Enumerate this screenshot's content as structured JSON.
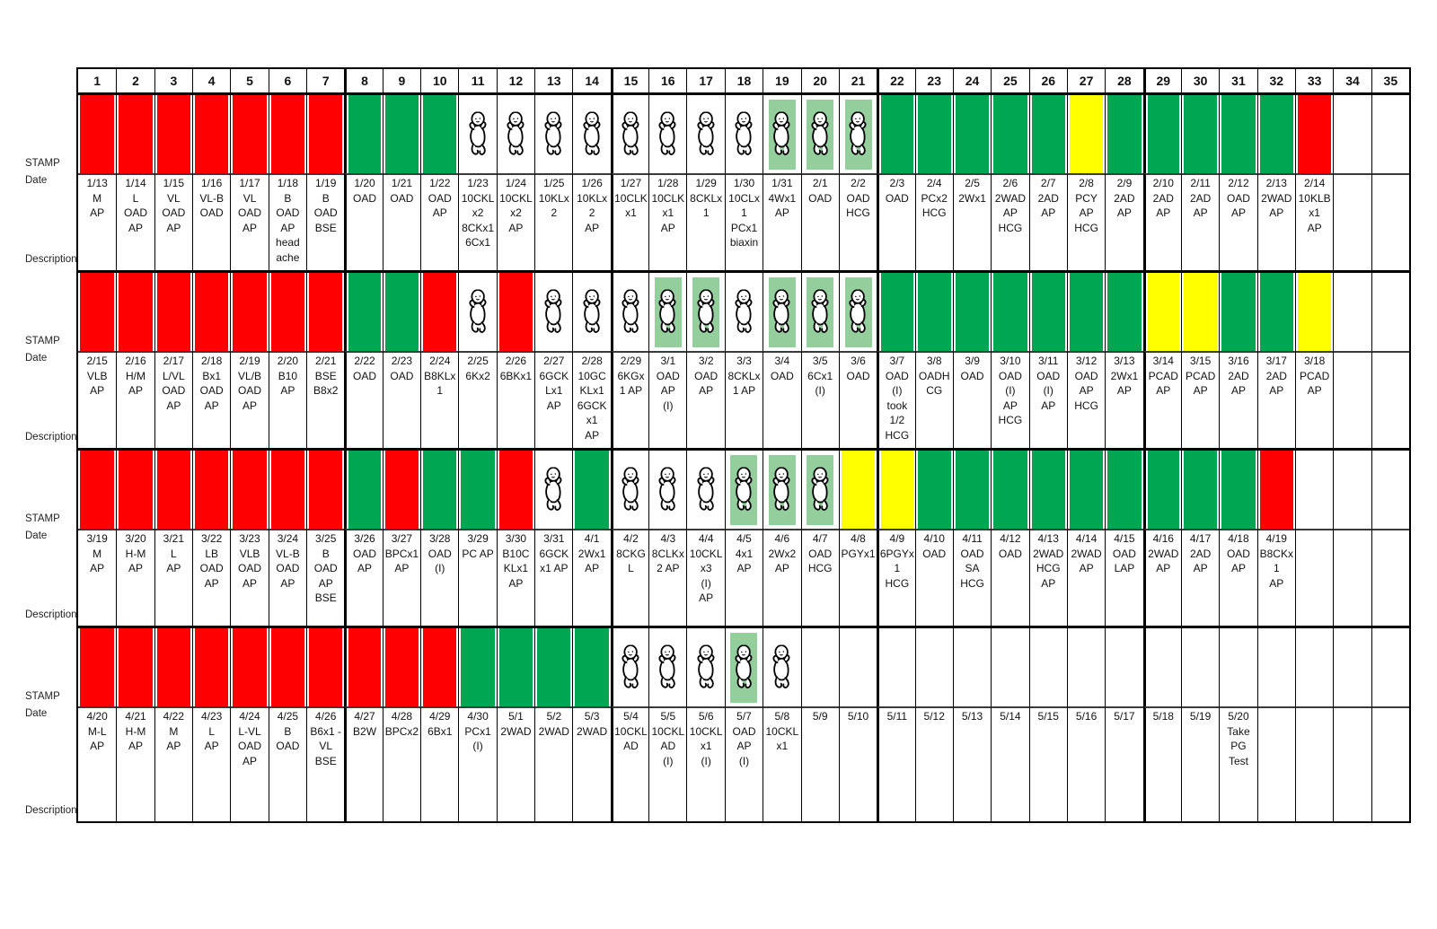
{
  "left_labels": {
    "stamp": "STAMP",
    "date": "Date",
    "description": "Description"
  },
  "columns": [
    "1",
    "2",
    "3",
    "4",
    "5",
    "6",
    "7",
    "8",
    "9",
    "10",
    "11",
    "12",
    "13",
    "14",
    "15",
    "16",
    "17",
    "18",
    "19",
    "20",
    "21",
    "22",
    "23",
    "24",
    "25",
    "26",
    "27",
    "28",
    "29",
    "30",
    "31",
    "32",
    "33",
    "34",
    "35"
  ],
  "colors": {
    "red": "#FF0000",
    "green": "#00A651",
    "yellow": "#FFFF00",
    "baby_highlight": "#94CE9D",
    "grid": "#000000"
  },
  "icons": {
    "baby": "baby-icon"
  },
  "rows": [
    {
      "name": "cycle-1",
      "cells": [
        {
          "s": "red",
          "text": "1/13\nM\nAP"
        },
        {
          "s": "red",
          "text": "1/14\nL\nOAD\nAP"
        },
        {
          "s": "red",
          "text": "1/15\nVL\nOAD\nAP"
        },
        {
          "s": "red",
          "text": "1/16\nVL-B\nOAD"
        },
        {
          "s": "red",
          "text": "1/17\nVL\nOAD\nAP"
        },
        {
          "s": "red",
          "text": "1/18\nB\nOAD\nAP\nhead\nache"
        },
        {
          "s": "red",
          "text": "1/19\nB\nOAD\nBSE"
        },
        {
          "s": "green",
          "text": "1/20\nOAD"
        },
        {
          "s": "green",
          "text": "1/21\nOAD"
        },
        {
          "s": "green",
          "text": "1/22\nOAD\nAP"
        },
        {
          "s": "baby",
          "text": "1/23\n10CKL\nx2\n8CKx1\n6Cx1"
        },
        {
          "s": "baby",
          "text": "1/24\n10CKL\nx2\nAP"
        },
        {
          "s": "baby",
          "text": "1/25\n10KLx\n2"
        },
        {
          "s": "baby",
          "text": "1/26\n10KLx\n2\nAP"
        },
        {
          "s": "baby",
          "text": "1/27\n10CLK\nx1"
        },
        {
          "s": "baby",
          "text": "1/28\n10CLK\nx1\nAP"
        },
        {
          "s": "baby",
          "text": "1/29\n8CKLx\n1"
        },
        {
          "s": "baby",
          "text": "1/30\n10CLx\n1\nPCx1\nbiaxin"
        },
        {
          "s": "baby-green",
          "text": "1/31\n4Wx1\nAP"
        },
        {
          "s": "baby-green",
          "text": "2/1\nOAD"
        },
        {
          "s": "baby-green",
          "text": "2/2\nOAD\nHCG"
        },
        {
          "s": "green",
          "text": "2/3\nOAD"
        },
        {
          "s": "green",
          "text": "2/4\nPCx2\nHCG"
        },
        {
          "s": "green",
          "text": "2/5\n2Wx1"
        },
        {
          "s": "green",
          "text": "2/6\n2WAD\nAP\nHCG"
        },
        {
          "s": "green",
          "text": "2/7\n2AD\nAP"
        },
        {
          "s": "yellow",
          "text": "2/8\nPCY\nAP\nHCG"
        },
        {
          "s": "green",
          "text": "2/9\n2AD\nAP"
        },
        {
          "s": "green",
          "text": "2/10\n2AD\nAP"
        },
        {
          "s": "green",
          "text": "2/11\n2AD\nAP"
        },
        {
          "s": "green",
          "text": "2/12\nOAD\nAP"
        },
        {
          "s": "green",
          "text": "2/13\n2WAD\nAP"
        },
        {
          "s": "red",
          "text": "2/14\n10KLB\nx1\nAP"
        },
        {
          "s": "none",
          "text": ""
        },
        {
          "s": "none",
          "text": ""
        }
      ]
    },
    {
      "name": "cycle-2",
      "cells": [
        {
          "s": "red",
          "text": "2/15\nVLB\nAP"
        },
        {
          "s": "red",
          "text": "2/16\nH/M\nAP"
        },
        {
          "s": "red",
          "text": "2/17\nL/VL\nOAD\nAP"
        },
        {
          "s": "red",
          "text": "2/18\nBx1\nOAD\nAP"
        },
        {
          "s": "red",
          "text": "2/19\nVL/B\nOAD\nAP"
        },
        {
          "s": "red",
          "text": "2/20\nB10\nAP"
        },
        {
          "s": "red",
          "text": "2/21\nBSE\nB8x2"
        },
        {
          "s": "green",
          "text": "2/22\nOAD"
        },
        {
          "s": "green",
          "text": "2/23\nOAD"
        },
        {
          "s": "red",
          "text": "2/24\nB8KLx\n1"
        },
        {
          "s": "baby",
          "text": "2/25\n6Kx2"
        },
        {
          "s": "red",
          "text": "2/26\n6BKx1"
        },
        {
          "s": "baby",
          "text": "2/27\n6GCK\nLx1\nAP"
        },
        {
          "s": "baby",
          "text": "2/28\n10GC\nKLx1\n6GCK\nx1\nAP"
        },
        {
          "s": "baby",
          "text": "2/29\n6KGx\n1 AP"
        },
        {
          "s": "baby-green",
          "text": "3/1\nOAD\nAP\n(I)"
        },
        {
          "s": "baby-green",
          "text": "3/2\nOAD\nAP"
        },
        {
          "s": "baby",
          "text": "3/3\n8CKLx\n1 AP"
        },
        {
          "s": "baby-green",
          "text": "3/4\nOAD"
        },
        {
          "s": "baby-green",
          "text": "3/5\n6Cx1\n(I)"
        },
        {
          "s": "baby-green",
          "text": "3/6\nOAD"
        },
        {
          "s": "green",
          "text": "3/7\nOAD\n(I)\ntook\n1/2\nHCG"
        },
        {
          "s": "green",
          "text": "3/8\nOADH\nCG"
        },
        {
          "s": "green",
          "text": "3/9\nOAD"
        },
        {
          "s": "green",
          "text": "3/10\nOAD\n(I)\nAP\nHCG"
        },
        {
          "s": "green",
          "text": "3/11\nOAD\n(I)\nAP"
        },
        {
          "s": "green",
          "text": "3/12\nOAD\nAP\nHCG"
        },
        {
          "s": "green",
          "text": "3/13\n2Wx1\nAP"
        },
        {
          "s": "yellow",
          "text": "3/14\nPCAD\nAP"
        },
        {
          "s": "yellow",
          "text": "3/15\nPCAD\nAP"
        },
        {
          "s": "green",
          "text": "3/16\n2AD\nAP"
        },
        {
          "s": "green",
          "text": "3/17\n2AD\nAP"
        },
        {
          "s": "yellow",
          "text": "3/18\nPCAD\nAP"
        },
        {
          "s": "none",
          "text": ""
        },
        {
          "s": "none",
          "text": ""
        }
      ]
    },
    {
      "name": "cycle-3",
      "cells": [
        {
          "s": "red",
          "text": "3/19\nM\nAP"
        },
        {
          "s": "red",
          "text": "3/20\nH-M\nAP"
        },
        {
          "s": "red",
          "text": "3/21\nL\nAP"
        },
        {
          "s": "red",
          "text": "3/22\nLB\nOAD\nAP"
        },
        {
          "s": "red",
          "text": "3/23\nVLB\nOAD\nAP"
        },
        {
          "s": "red",
          "text": "3/24\nVL-B\nOAD\nAP"
        },
        {
          "s": "red",
          "text": "3/25\nB\nOAD\nAP\nBSE"
        },
        {
          "s": "green",
          "text": "3/26\nOAD\nAP"
        },
        {
          "s": "red",
          "text": "3/27\nBPCx1\nAP"
        },
        {
          "s": "green",
          "text": "3/28\nOAD\n(I)"
        },
        {
          "s": "green",
          "text": "3/29\nPC AP"
        },
        {
          "s": "red",
          "text": "3/30\nB10C\nKLx1\nAP"
        },
        {
          "s": "baby",
          "text": "3/31\n6GCK\nx1 AP"
        },
        {
          "s": "green",
          "text": "4/1\n2Wx1\nAP"
        },
        {
          "s": "baby",
          "text": "4/2\n8CKG\nL"
        },
        {
          "s": "baby",
          "text": "4/3\n8CLKx\n2 AP"
        },
        {
          "s": "baby",
          "text": "4/4\n10CKL\nx3\n(I)\nAP"
        },
        {
          "s": "baby-green",
          "text": "4/5\n4x1\nAP"
        },
        {
          "s": "baby-green",
          "text": "4/6\n2Wx2\nAP"
        },
        {
          "s": "baby-green",
          "text": "4/7\nOAD\nHCG"
        },
        {
          "s": "yellow",
          "text": "4/8\nPGYx1"
        },
        {
          "s": "yellow",
          "text": "4/9\n6PGYx\n1\nHCG"
        },
        {
          "s": "green",
          "text": "4/10\nOAD"
        },
        {
          "s": "green",
          "text": "4/11\nOAD\nSA\nHCG"
        },
        {
          "s": "green",
          "text": "4/12\nOAD"
        },
        {
          "s": "green",
          "text": "4/13\n2WAD\nHCG\nAP"
        },
        {
          "s": "green",
          "text": "4/14\n2WAD\nAP"
        },
        {
          "s": "green",
          "text": "4/15\nOAD\nLAP"
        },
        {
          "s": "green",
          "text": "4/16\n2WAD\nAP"
        },
        {
          "s": "green",
          "text": "4/17\n2AD\nAP"
        },
        {
          "s": "green",
          "text": "4/18\nOAD\nAP"
        },
        {
          "s": "red",
          "text": "4/19\nB8CKx\n1\nAP"
        },
        {
          "s": "none",
          "text": ""
        },
        {
          "s": "none",
          "text": ""
        },
        {
          "s": "none",
          "text": ""
        }
      ]
    },
    {
      "name": "cycle-4",
      "cells": [
        {
          "s": "red",
          "text": "4/20\nM-L\nAP"
        },
        {
          "s": "red",
          "text": "4/21\nH-M\nAP"
        },
        {
          "s": "red",
          "text": "4/22\nM\nAP"
        },
        {
          "s": "red",
          "text": "4/23\nL\nAP"
        },
        {
          "s": "red",
          "text": "4/24\nL-VL\nOAD\nAP"
        },
        {
          "s": "red",
          "text": "4/25\nB\nOAD"
        },
        {
          "s": "red",
          "text": "4/26\nB6x1 -\nVL\nBSE"
        },
        {
          "s": "red",
          "text": "4/27\nB2W"
        },
        {
          "s": "red",
          "text": "4/28\nBPCx2"
        },
        {
          "s": "red",
          "text": "4/29\n6Bx1"
        },
        {
          "s": "green",
          "text": "4/30\nPCx1\n(I)"
        },
        {
          "s": "green",
          "text": "5/1\n2WAD"
        },
        {
          "s": "green",
          "text": "5/2\n2WAD"
        },
        {
          "s": "green",
          "text": "5/3\n2WAD"
        },
        {
          "s": "baby",
          "text": "5/4\n10CKL\nAD"
        },
        {
          "s": "baby",
          "text": "5/5\n10CKL\nAD\n(I)"
        },
        {
          "s": "baby",
          "text": "5/6\n10CKL\nx1\n(I)"
        },
        {
          "s": "baby-green",
          "text": "5/7\nOAD\nAP\n(I)"
        },
        {
          "s": "baby",
          "text": "5/8\n10CKL\nx1"
        },
        {
          "s": "none",
          "text": "5/9"
        },
        {
          "s": "none",
          "text": "5/10"
        },
        {
          "s": "none",
          "text": "5/11"
        },
        {
          "s": "none",
          "text": "5/12"
        },
        {
          "s": "none",
          "text": "5/13"
        },
        {
          "s": "none",
          "text": "5/14"
        },
        {
          "s": "none",
          "text": "5/15"
        },
        {
          "s": "none",
          "text": "5/16"
        },
        {
          "s": "none",
          "text": "5/17"
        },
        {
          "s": "none",
          "text": "5/18"
        },
        {
          "s": "none",
          "text": "5/19"
        },
        {
          "s": "none",
          "text": "5/20\nTake\nPG\nTest"
        },
        {
          "s": "none",
          "text": ""
        },
        {
          "s": "none",
          "text": ""
        },
        {
          "s": "none",
          "text": ""
        },
        {
          "s": "none",
          "text": ""
        }
      ]
    }
  ]
}
